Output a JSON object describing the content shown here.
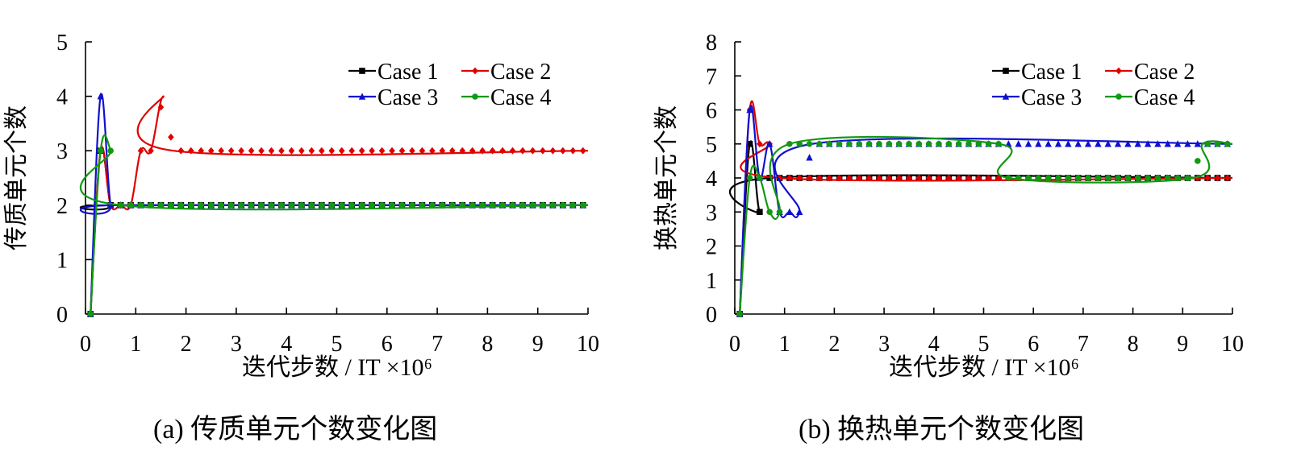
{
  "charts": [
    {
      "id": "a",
      "caption": "(a) 传质单元个数变化图",
      "chart_data": {
        "type": "line",
        "title": "",
        "xlabel": "迭代步数 / IT ×10⁶",
        "ylabel": "传质单元个数",
        "xlim": [
          0,
          10
        ],
        "ylim": [
          0,
          5
        ],
        "xticks": [
          "0",
          "1",
          "2",
          "3",
          "4",
          "5",
          "6",
          "7",
          "8",
          "9",
          "10"
        ],
        "yticks": [
          "0",
          "1",
          "2",
          "3",
          "4",
          "5"
        ],
        "legend_position": "top-right",
        "series": [
          {
            "name": "Case 1",
            "color": "#000000",
            "marker": "square",
            "points": [
              [
                0.1,
                0
              ],
              [
                0.3,
                3
              ],
              [
                0.5,
                2
              ],
              [
                0.7,
                2
              ],
              [
                10,
                2
              ]
            ]
          },
          {
            "name": "Case 2",
            "color": "#e00000",
            "marker": "diamond",
            "points": [
              [
                0.1,
                0
              ],
              [
                0.3,
                3
              ],
              [
                0.5,
                2
              ],
              [
                0.7,
                2
              ],
              [
                0.9,
                2
              ],
              [
                1.1,
                3
              ],
              [
                1.3,
                3
              ],
              [
                1.55,
                4
              ],
              [
                1.75,
                3
              ],
              [
                10,
                3
              ]
            ]
          },
          {
            "name": "Case 3",
            "color": "#1010d0",
            "marker": "triangle",
            "points": [
              [
                0.1,
                0
              ],
              [
                0.3,
                4
              ],
              [
                0.5,
                2
              ],
              [
                0.7,
                2
              ],
              [
                10,
                2
              ]
            ]
          },
          {
            "name": "Case 4",
            "color": "#119911",
            "marker": "circle",
            "points": [
              [
                0.1,
                0
              ],
              [
                0.3,
                3
              ],
              [
                0.5,
                3
              ],
              [
                0.7,
                2
              ],
              [
                10,
                2
              ]
            ]
          }
        ]
      }
    },
    {
      "id": "b",
      "caption": "(b) 换热单元个数变化图",
      "chart_data": {
        "type": "line",
        "title": "",
        "xlabel": "迭代步数 / IT ×10⁶",
        "ylabel": "换热单元个数",
        "xlim": [
          0,
          10
        ],
        "ylim": [
          0,
          8
        ],
        "xticks": [
          "0",
          "1",
          "2",
          "3",
          "4",
          "5",
          "6",
          "7",
          "8",
          "9",
          "10"
        ],
        "yticks": [
          "0",
          "1",
          "2",
          "3",
          "4",
          "5",
          "6",
          "7",
          "8"
        ],
        "legend_position": "top-right",
        "series": [
          {
            "name": "Case 1",
            "color": "#000000",
            "marker": "square",
            "points": [
              [
                0.1,
                0
              ],
              [
                0.3,
                5
              ],
              [
                0.5,
                3
              ],
              [
                0.7,
                4
              ],
              [
                10,
                4
              ]
            ]
          },
          {
            "name": "Case 2",
            "color": "#e00000",
            "marker": "diamond",
            "points": [
              [
                0.1,
                0
              ],
              [
                0.3,
                6
              ],
              [
                0.5,
                5
              ],
              [
                0.7,
                5
              ],
              [
                0.9,
                4
              ],
              [
                10,
                4
              ]
            ]
          },
          {
            "name": "Case 3",
            "color": "#1010d0",
            "marker": "triangle",
            "points": [
              [
                0.1,
                0
              ],
              [
                0.3,
                6
              ],
              [
                0.5,
                4
              ],
              [
                0.7,
                5
              ],
              [
                0.9,
                3
              ],
              [
                1.1,
                3
              ],
              [
                1.3,
                3
              ],
              [
                1.55,
                5
              ],
              [
                10,
                5
              ]
            ]
          },
          {
            "name": "Case 4",
            "color": "#119911",
            "marker": "circle",
            "points": [
              [
                0.1,
                0
              ],
              [
                0.3,
                4
              ],
              [
                0.5,
                4
              ],
              [
                0.7,
                3
              ],
              [
                0.9,
                3
              ],
              [
                1.1,
                5
              ],
              [
                5.3,
                5
              ],
              [
                5.5,
                4
              ],
              [
                9.2,
                4
              ],
              [
                9.4,
                5
              ],
              [
                10,
                5
              ]
            ]
          }
        ]
      }
    }
  ]
}
